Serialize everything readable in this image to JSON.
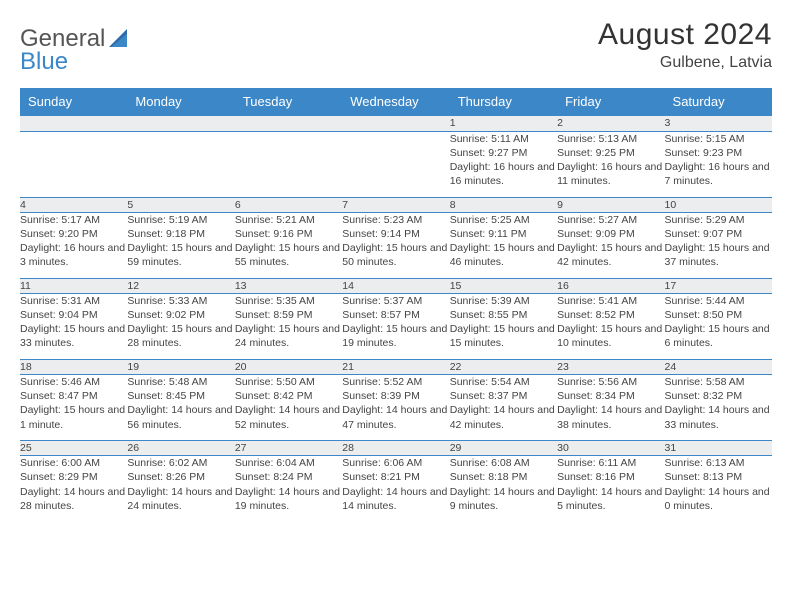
{
  "logo": {
    "word1": "General",
    "word2": "Blue"
  },
  "title": "August 2024",
  "location": "Gulbene, Latvia",
  "header_bg": "#3b87c8",
  "daynum_bg": "#ecedee",
  "border_color": "#3b87c8",
  "days_of_week": [
    "Sunday",
    "Monday",
    "Tuesday",
    "Wednesday",
    "Thursday",
    "Friday",
    "Saturday"
  ],
  "weeks": [
    [
      null,
      null,
      null,
      null,
      {
        "n": "1",
        "sr": "Sunrise: 5:11 AM",
        "ss": "Sunset: 9:27 PM",
        "dl": "Daylight: 16 hours and 16 minutes."
      },
      {
        "n": "2",
        "sr": "Sunrise: 5:13 AM",
        "ss": "Sunset: 9:25 PM",
        "dl": "Daylight: 16 hours and 11 minutes."
      },
      {
        "n": "3",
        "sr": "Sunrise: 5:15 AM",
        "ss": "Sunset: 9:23 PM",
        "dl": "Daylight: 16 hours and 7 minutes."
      }
    ],
    [
      {
        "n": "4",
        "sr": "Sunrise: 5:17 AM",
        "ss": "Sunset: 9:20 PM",
        "dl": "Daylight: 16 hours and 3 minutes."
      },
      {
        "n": "5",
        "sr": "Sunrise: 5:19 AM",
        "ss": "Sunset: 9:18 PM",
        "dl": "Daylight: 15 hours and 59 minutes."
      },
      {
        "n": "6",
        "sr": "Sunrise: 5:21 AM",
        "ss": "Sunset: 9:16 PM",
        "dl": "Daylight: 15 hours and 55 minutes."
      },
      {
        "n": "7",
        "sr": "Sunrise: 5:23 AM",
        "ss": "Sunset: 9:14 PM",
        "dl": "Daylight: 15 hours and 50 minutes."
      },
      {
        "n": "8",
        "sr": "Sunrise: 5:25 AM",
        "ss": "Sunset: 9:11 PM",
        "dl": "Daylight: 15 hours and 46 minutes."
      },
      {
        "n": "9",
        "sr": "Sunrise: 5:27 AM",
        "ss": "Sunset: 9:09 PM",
        "dl": "Daylight: 15 hours and 42 minutes."
      },
      {
        "n": "10",
        "sr": "Sunrise: 5:29 AM",
        "ss": "Sunset: 9:07 PM",
        "dl": "Daylight: 15 hours and 37 minutes."
      }
    ],
    [
      {
        "n": "11",
        "sr": "Sunrise: 5:31 AM",
        "ss": "Sunset: 9:04 PM",
        "dl": "Daylight: 15 hours and 33 minutes."
      },
      {
        "n": "12",
        "sr": "Sunrise: 5:33 AM",
        "ss": "Sunset: 9:02 PM",
        "dl": "Daylight: 15 hours and 28 minutes."
      },
      {
        "n": "13",
        "sr": "Sunrise: 5:35 AM",
        "ss": "Sunset: 8:59 PM",
        "dl": "Daylight: 15 hours and 24 minutes."
      },
      {
        "n": "14",
        "sr": "Sunrise: 5:37 AM",
        "ss": "Sunset: 8:57 PM",
        "dl": "Daylight: 15 hours and 19 minutes."
      },
      {
        "n": "15",
        "sr": "Sunrise: 5:39 AM",
        "ss": "Sunset: 8:55 PM",
        "dl": "Daylight: 15 hours and 15 minutes."
      },
      {
        "n": "16",
        "sr": "Sunrise: 5:41 AM",
        "ss": "Sunset: 8:52 PM",
        "dl": "Daylight: 15 hours and 10 minutes."
      },
      {
        "n": "17",
        "sr": "Sunrise: 5:44 AM",
        "ss": "Sunset: 8:50 PM",
        "dl": "Daylight: 15 hours and 6 minutes."
      }
    ],
    [
      {
        "n": "18",
        "sr": "Sunrise: 5:46 AM",
        "ss": "Sunset: 8:47 PM",
        "dl": "Daylight: 15 hours and 1 minute."
      },
      {
        "n": "19",
        "sr": "Sunrise: 5:48 AM",
        "ss": "Sunset: 8:45 PM",
        "dl": "Daylight: 14 hours and 56 minutes."
      },
      {
        "n": "20",
        "sr": "Sunrise: 5:50 AM",
        "ss": "Sunset: 8:42 PM",
        "dl": "Daylight: 14 hours and 52 minutes."
      },
      {
        "n": "21",
        "sr": "Sunrise: 5:52 AM",
        "ss": "Sunset: 8:39 PM",
        "dl": "Daylight: 14 hours and 47 minutes."
      },
      {
        "n": "22",
        "sr": "Sunrise: 5:54 AM",
        "ss": "Sunset: 8:37 PM",
        "dl": "Daylight: 14 hours and 42 minutes."
      },
      {
        "n": "23",
        "sr": "Sunrise: 5:56 AM",
        "ss": "Sunset: 8:34 PM",
        "dl": "Daylight: 14 hours and 38 minutes."
      },
      {
        "n": "24",
        "sr": "Sunrise: 5:58 AM",
        "ss": "Sunset: 8:32 PM",
        "dl": "Daylight: 14 hours and 33 minutes."
      }
    ],
    [
      {
        "n": "25",
        "sr": "Sunrise: 6:00 AM",
        "ss": "Sunset: 8:29 PM",
        "dl": "Daylight: 14 hours and 28 minutes."
      },
      {
        "n": "26",
        "sr": "Sunrise: 6:02 AM",
        "ss": "Sunset: 8:26 PM",
        "dl": "Daylight: 14 hours and 24 minutes."
      },
      {
        "n": "27",
        "sr": "Sunrise: 6:04 AM",
        "ss": "Sunset: 8:24 PM",
        "dl": "Daylight: 14 hours and 19 minutes."
      },
      {
        "n": "28",
        "sr": "Sunrise: 6:06 AM",
        "ss": "Sunset: 8:21 PM",
        "dl": "Daylight: 14 hours and 14 minutes."
      },
      {
        "n": "29",
        "sr": "Sunrise: 6:08 AM",
        "ss": "Sunset: 8:18 PM",
        "dl": "Daylight: 14 hours and 9 minutes."
      },
      {
        "n": "30",
        "sr": "Sunrise: 6:11 AM",
        "ss": "Sunset: 8:16 PM",
        "dl": "Daylight: 14 hours and 5 minutes."
      },
      {
        "n": "31",
        "sr": "Sunrise: 6:13 AM",
        "ss": "Sunset: 8:13 PM",
        "dl": "Daylight: 14 hours and 0 minutes."
      }
    ]
  ]
}
